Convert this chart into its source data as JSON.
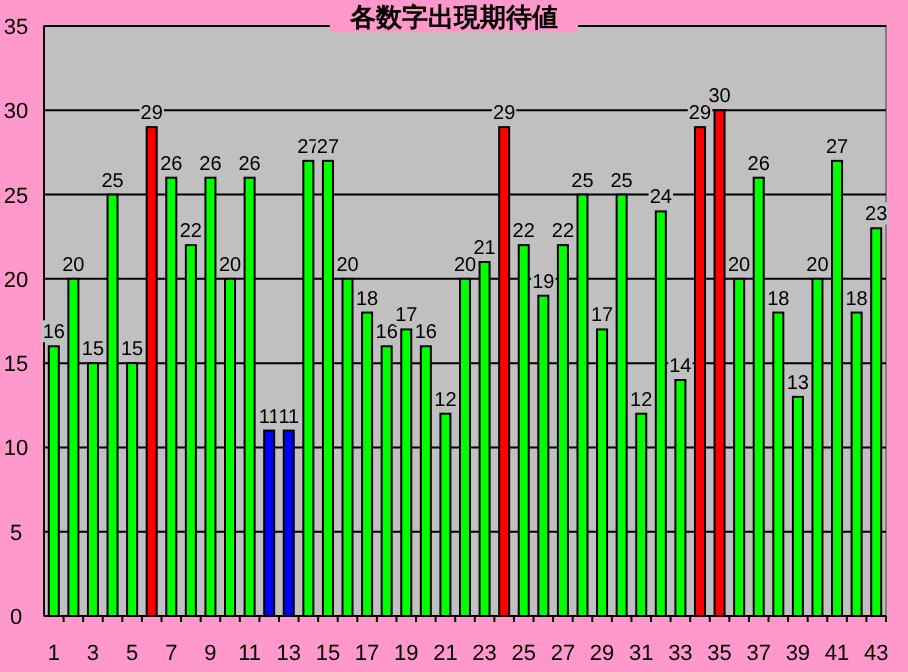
{
  "chart_data": {
    "type": "bar",
    "title": "各数字出現期待値",
    "categories": [
      "1",
      null,
      "3",
      null,
      "5",
      null,
      "7",
      null,
      "9",
      null,
      "11",
      null,
      "13",
      null,
      "15",
      null,
      "17",
      null,
      "19",
      null,
      "21",
      null,
      "23",
      null,
      "25",
      null,
      "27",
      null,
      "29",
      null,
      "31",
      null,
      "33",
      null,
      "35",
      null,
      "37",
      null,
      "39",
      null,
      "41",
      null,
      "43"
    ],
    "values": [
      16,
      20,
      15,
      25,
      15,
      29,
      26,
      22,
      26,
      20,
      26,
      11,
      11,
      27,
      27,
      20,
      18,
      16,
      17,
      16,
      12,
      20,
      21,
      29,
      22,
      19,
      22,
      25,
      17,
      25,
      12,
      24,
      14,
      29,
      30,
      20,
      26,
      18,
      13,
      20,
      27,
      18,
      23
    ],
    "colors": [
      "#00ff00",
      "#00ff00",
      "#00ff00",
      "#00ff00",
      "#00ff00",
      "#ff0000",
      "#00ff00",
      "#00ff00",
      "#00ff00",
      "#00ff00",
      "#00ff00",
      "#0000ff",
      "#0000ff",
      "#00ff00",
      "#00ff00",
      "#00ff00",
      "#00ff00",
      "#00ff00",
      "#00ff00",
      "#00ff00",
      "#00ff00",
      "#00ff00",
      "#00ff00",
      "#ff0000",
      "#00ff00",
      "#00ff00",
      "#00ff00",
      "#00ff00",
      "#00ff00",
      "#00ff00",
      "#00ff00",
      "#00ff00",
      "#00ff00",
      "#ff0000",
      "#ff0000",
      "#00ff00",
      "#00ff00",
      "#00ff00",
      "#00ff00",
      "#00ff00",
      "#00ff00",
      "#00ff00",
      "#00ff00"
    ],
    "ylim": [
      0,
      35
    ],
    "yticks": [
      0,
      5,
      10,
      15,
      20,
      25,
      30,
      35
    ],
    "grid": "y",
    "data_labels": true
  }
}
